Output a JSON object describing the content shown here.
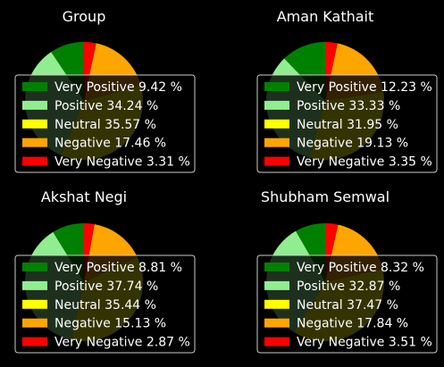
{
  "chart_data": [
    {
      "type": "pie",
      "title": "Group",
      "legend_position": "center-overlay",
      "categories": [
        "Very Positive",
        "Positive",
        "Neutral",
        "Negative",
        "Very Negative"
      ],
      "values": [
        9.42,
        34.24,
        35.57,
        17.46,
        3.31
      ],
      "legend_labels": [
        "Very Positive 9.42 %",
        "Positive 34.24 %",
        "Neutral 35.57 %",
        "Negative 17.46 %",
        "Very Negative 3.31 %"
      ]
    },
    {
      "type": "pie",
      "title": "Aman Kathait",
      "legend_position": "center-overlay",
      "categories": [
        "Very Positive",
        "Positive",
        "Neutral",
        "Negative",
        "Very Negative"
      ],
      "values": [
        12.23,
        33.33,
        31.95,
        19.13,
        3.35
      ],
      "legend_labels": [
        "Very Positive 12.23 %",
        "Positive 33.33 %",
        "Neutral 31.95 %",
        "Negative 19.13 %",
        "Very Negative 3.35 %"
      ]
    },
    {
      "type": "pie",
      "title": "Akshat Negi",
      "legend_position": "center-overlay",
      "categories": [
        "Very Positive",
        "Positive",
        "Neutral",
        "Negative",
        "Very Negative"
      ],
      "values": [
        8.81,
        37.74,
        35.44,
        15.13,
        2.87
      ],
      "legend_labels": [
        "Very Positive 8.81 %",
        "Positive 37.74 %",
        "Neutral 35.44 %",
        "Negative 15.13 %",
        "Very Negative 2.87 %"
      ]
    },
    {
      "type": "pie",
      "title": "Shubham Semwal",
      "legend_position": "center-overlay",
      "categories": [
        "Very Positive",
        "Positive",
        "Neutral",
        "Negative",
        "Very Negative"
      ],
      "values": [
        8.32,
        32.87,
        37.47,
        17.84,
        3.51
      ],
      "legend_labels": [
        "Very Positive 8.32 %",
        "Positive 32.87 %",
        "Neutral 37.47 %",
        "Negative 17.84 %",
        "Very Negative 3.51 %"
      ]
    }
  ],
  "colors": {
    "very_positive": "#008000",
    "positive": "#90ee90",
    "neutral": "#ffff00",
    "negative": "#ffa500",
    "very_negative": "#ff0000",
    "background": "#000000",
    "legend_bg": "#000000",
    "legend_border": "#cccccc",
    "text": "#ffffff"
  }
}
